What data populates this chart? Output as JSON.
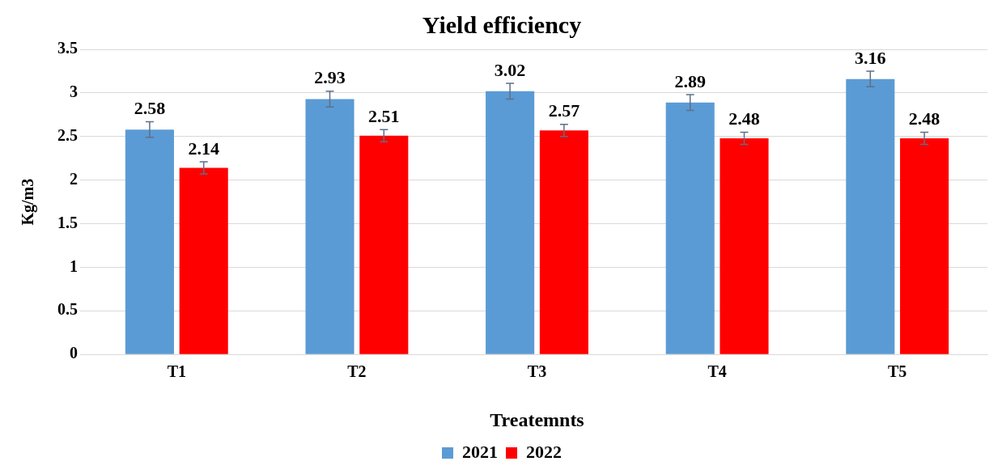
{
  "chart_data": {
    "type": "bar",
    "title": "Yield efficiency",
    "xlabel": "Treatemnts",
    "ylabel": "Kg/m3",
    "categories": [
      "T1",
      "T2",
      "T3",
      "T4",
      "T5"
    ],
    "series": [
      {
        "name": "2021",
        "color": "#5b9bd5",
        "values": [
          2.58,
          2.93,
          3.02,
          2.89,
          3.16
        ],
        "errors": [
          0.09,
          0.09,
          0.09,
          0.09,
          0.09
        ]
      },
      {
        "name": "2022",
        "color": "#ff0000",
        "values": [
          2.14,
          2.51,
          2.57,
          2.48,
          2.48
        ],
        "errors": [
          0.07,
          0.07,
          0.07,
          0.07,
          0.07
        ]
      }
    ],
    "ylim": [
      0,
      3.5
    ],
    "yticks": [
      0,
      0.5,
      1,
      1.5,
      2,
      2.5,
      3,
      3.5
    ],
    "grid": "y",
    "legend": "bottom",
    "data_labels": true
  }
}
